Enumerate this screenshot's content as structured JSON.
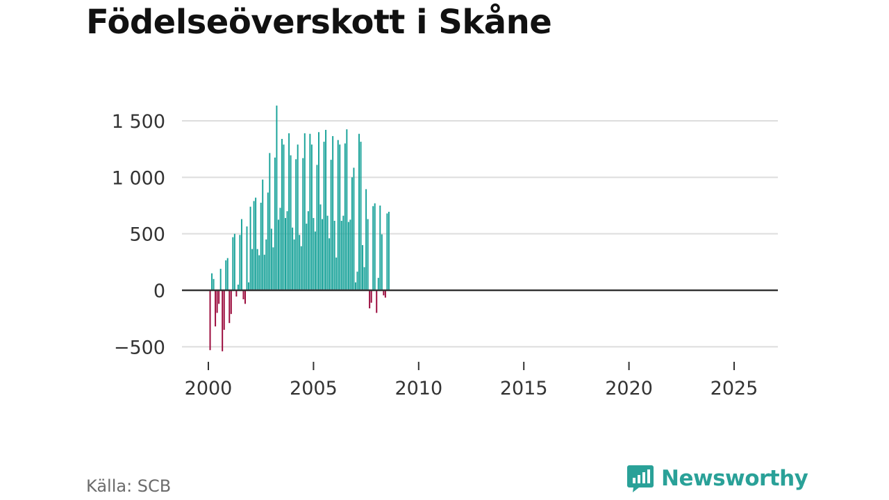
{
  "title": "Födelseöverskott i Skåne",
  "source": "Källa: SCB",
  "brand": {
    "name": "Newsworthy",
    "icon": "bar-chart-speech-icon"
  },
  "colors": {
    "positive": "#1aa39a",
    "negative": "#9b0a3c",
    "grid": "#dddddd",
    "zero_line": "#333333",
    "brand": "#2aa198"
  },
  "chart_data": {
    "type": "bar",
    "title": "Födelseöverskott i Skåne",
    "xlabel": "",
    "ylabel": "",
    "x_ticks": [
      2000,
      2005,
      2010,
      2015,
      2020,
      2025
    ],
    "y_ticks": [
      {
        "value": -500,
        "label": "−500"
      },
      {
        "value": 0,
        "label": "0"
      },
      {
        "value": 500,
        "label": "500"
      },
      {
        "value": 1000,
        "label": "1 000"
      },
      {
        "value": 1500,
        "label": "1 500"
      }
    ],
    "ylim": [
      -600,
      1700
    ],
    "xlim": [
      1999.5,
      2026.3
    ],
    "grid": true,
    "frequency": "monthly",
    "start": {
      "year": 2000,
      "month": 2
    },
    "values": [
      -530,
      150,
      100,
      -320,
      -200,
      -120,
      190,
      -540,
      -350,
      265,
      285,
      -290,
      -210,
      470,
      500,
      -55,
      50,
      490,
      630,
      -80,
      -120,
      565,
      70,
      740,
      365,
      790,
      820,
      365,
      310,
      775,
      980,
      315,
      450,
      865,
      1215,
      545,
      380,
      1175,
      1635,
      625,
      730,
      1340,
      1290,
      640,
      700,
      1390,
      1195,
      555,
      450,
      1160,
      1290,
      490,
      390,
      1170,
      1390,
      590,
      700,
      1385,
      1290,
      640,
      520,
      1110,
      1400,
      760,
      630,
      1315,
      1420,
      660,
      460,
      1155,
      1365,
      615,
      290,
      1330,
      1290,
      615,
      660,
      1300,
      1425,
      605,
      625,
      1000,
      1085,
      70,
      165,
      1385,
      1315,
      400,
      205,
      895,
      630,
      -160,
      -110,
      745,
      770,
      -200,
      110,
      750,
      495,
      -45,
      -65,
      680,
      695
    ]
  }
}
